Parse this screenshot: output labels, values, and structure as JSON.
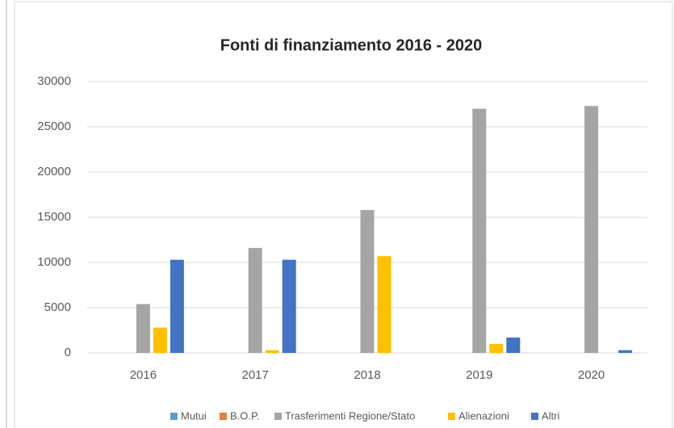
{
  "chart_data": {
    "type": "bar",
    "title": "Fonti di finanziamento 2016 - 2020",
    "categories": [
      "2016",
      "2017",
      "2018",
      "2019",
      "2020"
    ],
    "series": [
      {
        "name": "Mutui",
        "color": "#5b9bd5",
        "values": [
          0,
          0,
          0,
          0,
          0
        ]
      },
      {
        "name": "B.O.P.",
        "color": "#ed7d31",
        "values": [
          0,
          0,
          0,
          0,
          0
        ]
      },
      {
        "name": "Trasferimenti Regione/Stato",
        "color": "#a5a5a5",
        "values": [
          5400,
          11600,
          15800,
          27000,
          27300
        ]
      },
      {
        "name": "Alienazioni",
        "color": "#ffc000",
        "values": [
          2800,
          300,
          10700,
          1000,
          0
        ]
      },
      {
        "name": "Altri",
        "color": "#4472c4",
        "values": [
          10300,
          10300,
          0,
          1700,
          300
        ]
      }
    ],
    "ylim": [
      0,
      30000
    ],
    "yticks": [
      0,
      5000,
      10000,
      15000,
      20000,
      25000,
      30000
    ],
    "grid": true,
    "legend": "bottom"
  }
}
